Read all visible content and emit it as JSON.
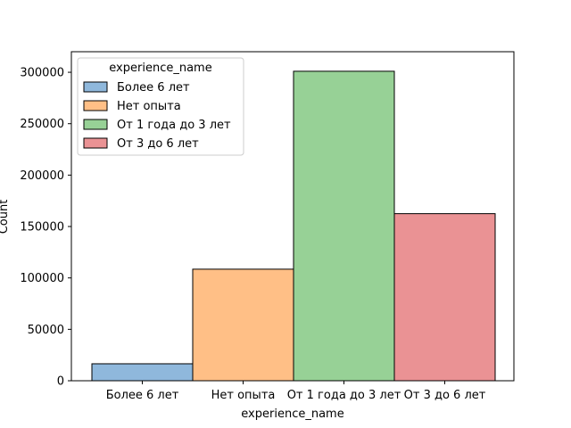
{
  "chart_data": {
    "type": "bar",
    "xlabel": "experience_name",
    "ylabel": "Count",
    "categories": [
      "Более 6 лет",
      "Нет опыта",
      "От 1 года до 3 лет",
      "От 3 до 6 лет"
    ],
    "values": [
      16500,
      108500,
      301000,
      162500
    ],
    "colors": [
      "#8fb8dc",
      "#ffbf86",
      "#97d196",
      "#ea9294"
    ],
    "ylim": [
      0,
      320000
    ],
    "yticks": [
      0,
      50000,
      100000,
      150000,
      200000,
      250000,
      300000
    ],
    "ytick_labels": [
      "0",
      "50000",
      "100000",
      "150000",
      "200000",
      "250000",
      "300000"
    ],
    "legend": {
      "title": "experience_name",
      "placement": "top-left",
      "entries": [
        "Более 6 лет",
        "Нет опыта",
        "От 1 года до 3 лет",
        "От 3 до 6 лет"
      ]
    },
    "grid": false
  }
}
